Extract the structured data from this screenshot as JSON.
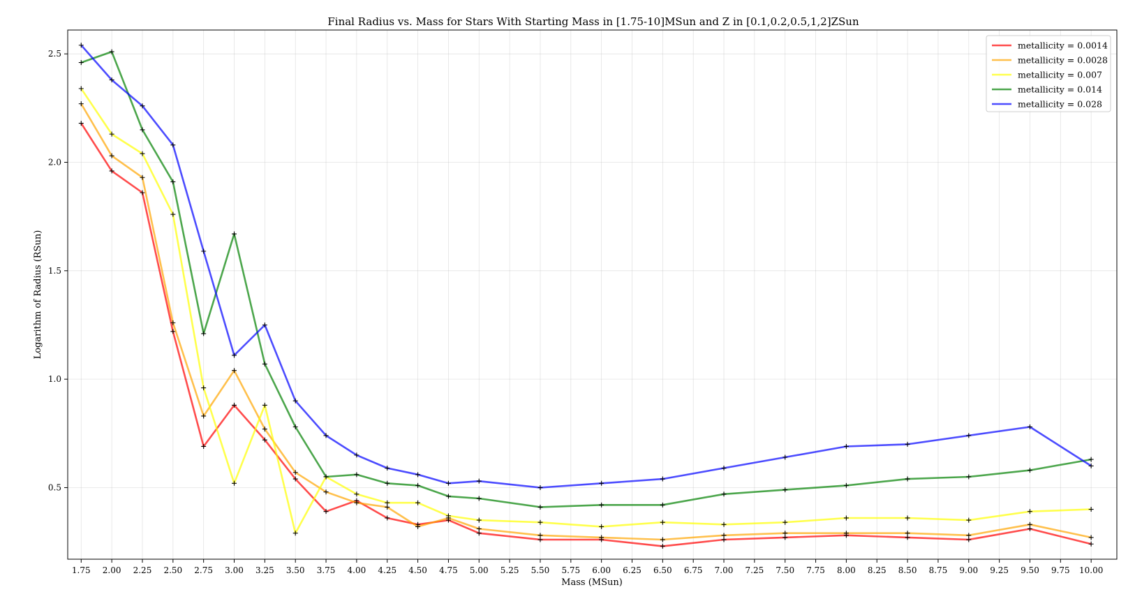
{
  "chart_data": {
    "type": "line",
    "title": "Final Radius vs. Mass for Stars With Starting Mass in [1.75-10]MSun and Z in [0.1,0.2,0.5,1,2]ZSun",
    "xlabel": "Mass (MSun)",
    "ylabel": "Logarithm of Radius (RSun)",
    "xlim": [
      1.64,
      10.21
    ],
    "ylim": [
      0.17,
      2.61
    ],
    "grid": true,
    "legend_position": "top-right",
    "x_ticks": [
      1.75,
      2.0,
      2.25,
      2.5,
      2.75,
      3.0,
      3.25,
      3.5,
      3.75,
      4.0,
      4.25,
      4.5,
      4.75,
      5.0,
      5.25,
      5.5,
      5.75,
      6.0,
      6.25,
      6.5,
      6.75,
      7.0,
      7.25,
      7.5,
      7.75,
      8.0,
      8.25,
      8.5,
      8.75,
      9.0,
      9.25,
      9.5,
      9.75,
      10.0
    ],
    "x_tick_labels": [
      "1.75",
      "2.00",
      "2.25",
      "2.50",
      "2.75",
      "3.00",
      "3.25",
      "3.50",
      "3.75",
      "4.00",
      "4.25",
      "4.50",
      "4.75",
      "5.00",
      "5.25",
      "5.50",
      "5.75",
      "6.00",
      "6.25",
      "6.50",
      "6.75",
      "7.00",
      "7.25",
      "7.50",
      "7.75",
      "8.00",
      "8.25",
      "8.50",
      "8.75",
      "9.00",
      "9.25",
      "9.50",
      "9.75",
      "10.00"
    ],
    "y_ticks": [
      0.5,
      1.0,
      1.5,
      2.0,
      2.5
    ],
    "y_tick_labels": [
      "0.5",
      "1.0",
      "1.5",
      "2.0",
      "2.5"
    ],
    "x": [
      1.75,
      2.0,
      2.25,
      2.5,
      2.75,
      3.0,
      3.25,
      3.5,
      3.75,
      4.0,
      4.25,
      4.5,
      4.75,
      5.0,
      5.5,
      6.0,
      6.5,
      7.0,
      7.5,
      8.0,
      8.5,
      9.0,
      9.5,
      10.0
    ],
    "series": [
      {
        "name": "metallicity = 0.0014",
        "color": "#ff0000",
        "values": [
          2.18,
          1.96,
          1.86,
          1.22,
          0.69,
          0.88,
          0.72,
          0.54,
          0.39,
          0.44,
          0.36,
          0.33,
          0.35,
          0.29,
          0.26,
          0.26,
          0.23,
          0.26,
          0.27,
          0.28,
          0.27,
          0.26,
          0.31,
          0.24
        ]
      },
      {
        "name": "metallicity = 0.0028",
        "color": "#ffa500",
        "values": [
          2.27,
          2.03,
          1.93,
          1.26,
          0.83,
          1.04,
          0.77,
          0.57,
          0.48,
          0.43,
          0.41,
          0.32,
          0.36,
          0.31,
          0.28,
          0.27,
          0.26,
          0.28,
          0.29,
          0.29,
          0.29,
          0.28,
          0.33,
          0.27
        ]
      },
      {
        "name": "metallicity = 0.007",
        "color": "#ffff00",
        "values": [
          2.34,
          2.13,
          2.04,
          1.76,
          0.96,
          0.52,
          0.88,
          0.29,
          0.55,
          0.47,
          0.43,
          0.43,
          0.37,
          0.35,
          0.34,
          0.32,
          0.34,
          0.33,
          0.34,
          0.36,
          0.36,
          0.35,
          0.39,
          0.4
        ]
      },
      {
        "name": "metallicity = 0.014",
        "color": "#008000",
        "values": [
          2.46,
          2.51,
          2.15,
          1.91,
          1.21,
          1.67,
          1.07,
          0.78,
          0.55,
          0.56,
          0.52,
          0.51,
          0.46,
          0.45,
          0.41,
          0.42,
          0.42,
          0.47,
          0.49,
          0.51,
          0.54,
          0.55,
          0.58,
          0.63
        ]
      },
      {
        "name": "metallicity = 0.028",
        "color": "#0000ff",
        "values": [
          2.54,
          2.38,
          2.26,
          2.08,
          1.59,
          1.11,
          1.25,
          0.9,
          0.74,
          0.65,
          0.59,
          0.56,
          0.52,
          0.53,
          0.5,
          0.52,
          0.54,
          0.59,
          0.64,
          0.69,
          0.7,
          0.74,
          0.78,
          0.6
        ]
      }
    ]
  }
}
